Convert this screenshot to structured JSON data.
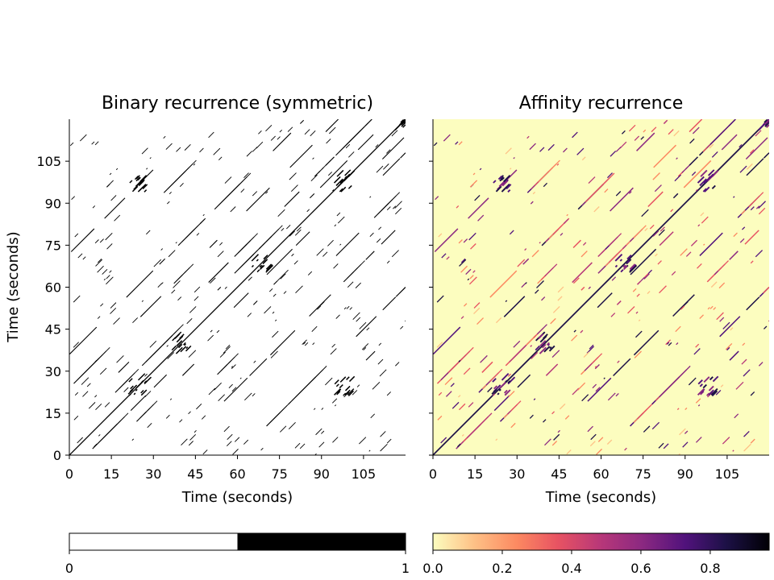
{
  "chart_data": [
    {
      "type": "heatmap",
      "title": "Binary recurrence (symmetric)",
      "xlabel": "Time (seconds)",
      "ylabel": "Time (seconds)",
      "xlim": [
        0,
        120
      ],
      "ylim": [
        0,
        120
      ],
      "xticks": [
        "0",
        "15",
        "30",
        "45",
        "60",
        "75",
        "90",
        "105"
      ],
      "yticks": [
        "0",
        "15",
        "30",
        "45",
        "60",
        "75",
        "90",
        "105"
      ],
      "colormap": "gray_r",
      "background_color": "#ffffff",
      "mark_color": "#000000",
      "colorbar": {
        "ticks": [
          "0",
          "1"
        ],
        "range": [
          0,
          1
        ]
      }
    },
    {
      "type": "heatmap",
      "title": "Affinity recurrence",
      "xlabel": "Time (seconds)",
      "xlim": [
        0,
        120
      ],
      "ylim": [
        0,
        120
      ],
      "xticks": [
        "0",
        "15",
        "30",
        "45",
        "60",
        "75",
        "90",
        "105"
      ],
      "colormap": "magma_r",
      "background_color": "#fcfdbf",
      "colorbar": {
        "ticks": [
          "0.0",
          "0.2",
          "0.4",
          "0.6",
          "0.8"
        ],
        "range": [
          0,
          0.97
        ]
      }
    }
  ],
  "recurrence": {
    "diagonal_offsets_seconds": [
      0,
      60,
      -60,
      72,
      -72,
      12,
      -12,
      24,
      -24,
      6,
      -6,
      36,
      -36
    ],
    "hotspots_seconds": [
      [
        24,
        24
      ],
      [
        39,
        39
      ],
      [
        68,
        68
      ],
      [
        97,
        97
      ],
      [
        119,
        119
      ],
      [
        97,
        24
      ],
      [
        24,
        97
      ]
    ]
  }
}
